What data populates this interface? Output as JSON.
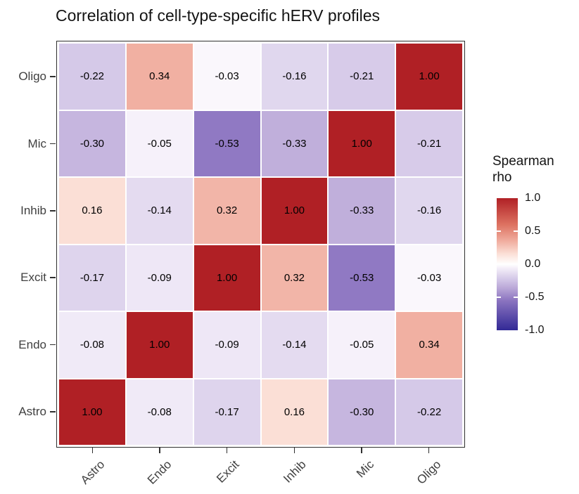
{
  "title": "Correlation of cell-type-specific hERV profiles",
  "legend": {
    "title_line1": "Spearman",
    "title_line2": "rho",
    "tick_labels": [
      "1.0",
      "0.5",
      "0.0",
      "-0.5",
      "-1.0"
    ]
  },
  "chart_data": {
    "type": "heatmap",
    "title": "Correlation of cell-type-specific hERV profiles",
    "x_categories": [
      "Astro",
      "Endo",
      "Excit",
      "Inhib",
      "Mic",
      "Oligo"
    ],
    "y_categories_top_to_bottom": [
      "Oligo",
      "Mic",
      "Inhib",
      "Excit",
      "Endo",
      "Astro"
    ],
    "matrix_rows_top_to_bottom": [
      [
        -0.22,
        0.34,
        -0.03,
        -0.16,
        -0.21,
        1.0
      ],
      [
        -0.3,
        -0.05,
        -0.53,
        -0.33,
        1.0,
        -0.21
      ],
      [
        0.16,
        -0.14,
        0.32,
        1.0,
        -0.33,
        -0.16
      ],
      [
        -0.17,
        -0.09,
        1.0,
        0.32,
        -0.53,
        -0.03
      ],
      [
        -0.08,
        1.0,
        -0.09,
        -0.14,
        -0.05,
        0.34
      ],
      [
        1.0,
        -0.08,
        -0.17,
        0.16,
        -0.3,
        -0.22
      ]
    ],
    "value_decimals": 2,
    "legend_title": "Spearman rho",
    "legend_ticks": [
      1.0,
      0.5,
      0.0,
      -0.5,
      -1.0
    ],
    "colorbar_range": [
      -1,
      1
    ],
    "grid": false,
    "legend_position": "right",
    "color_stops": [
      {
        "v": -1.0,
        "c": "#322996"
      },
      {
        "v": -0.55,
        "c": "#8b74c0"
      },
      {
        "v": -0.35,
        "c": "#bcaad9"
      },
      {
        "v": -0.25,
        "c": "#cfc2e5"
      },
      {
        "v": -0.15,
        "c": "#e2d9ef"
      },
      {
        "v": -0.05,
        "c": "#f6f1fa"
      },
      {
        "v": 0.0,
        "c": "#ffffff"
      },
      {
        "v": 0.16,
        "c": "#fbdfd6"
      },
      {
        "v": 0.34,
        "c": "#f1b0a2"
      },
      {
        "v": 0.6,
        "c": "#dd7261"
      },
      {
        "v": 1.0,
        "c": "#b02025"
      }
    ]
  }
}
